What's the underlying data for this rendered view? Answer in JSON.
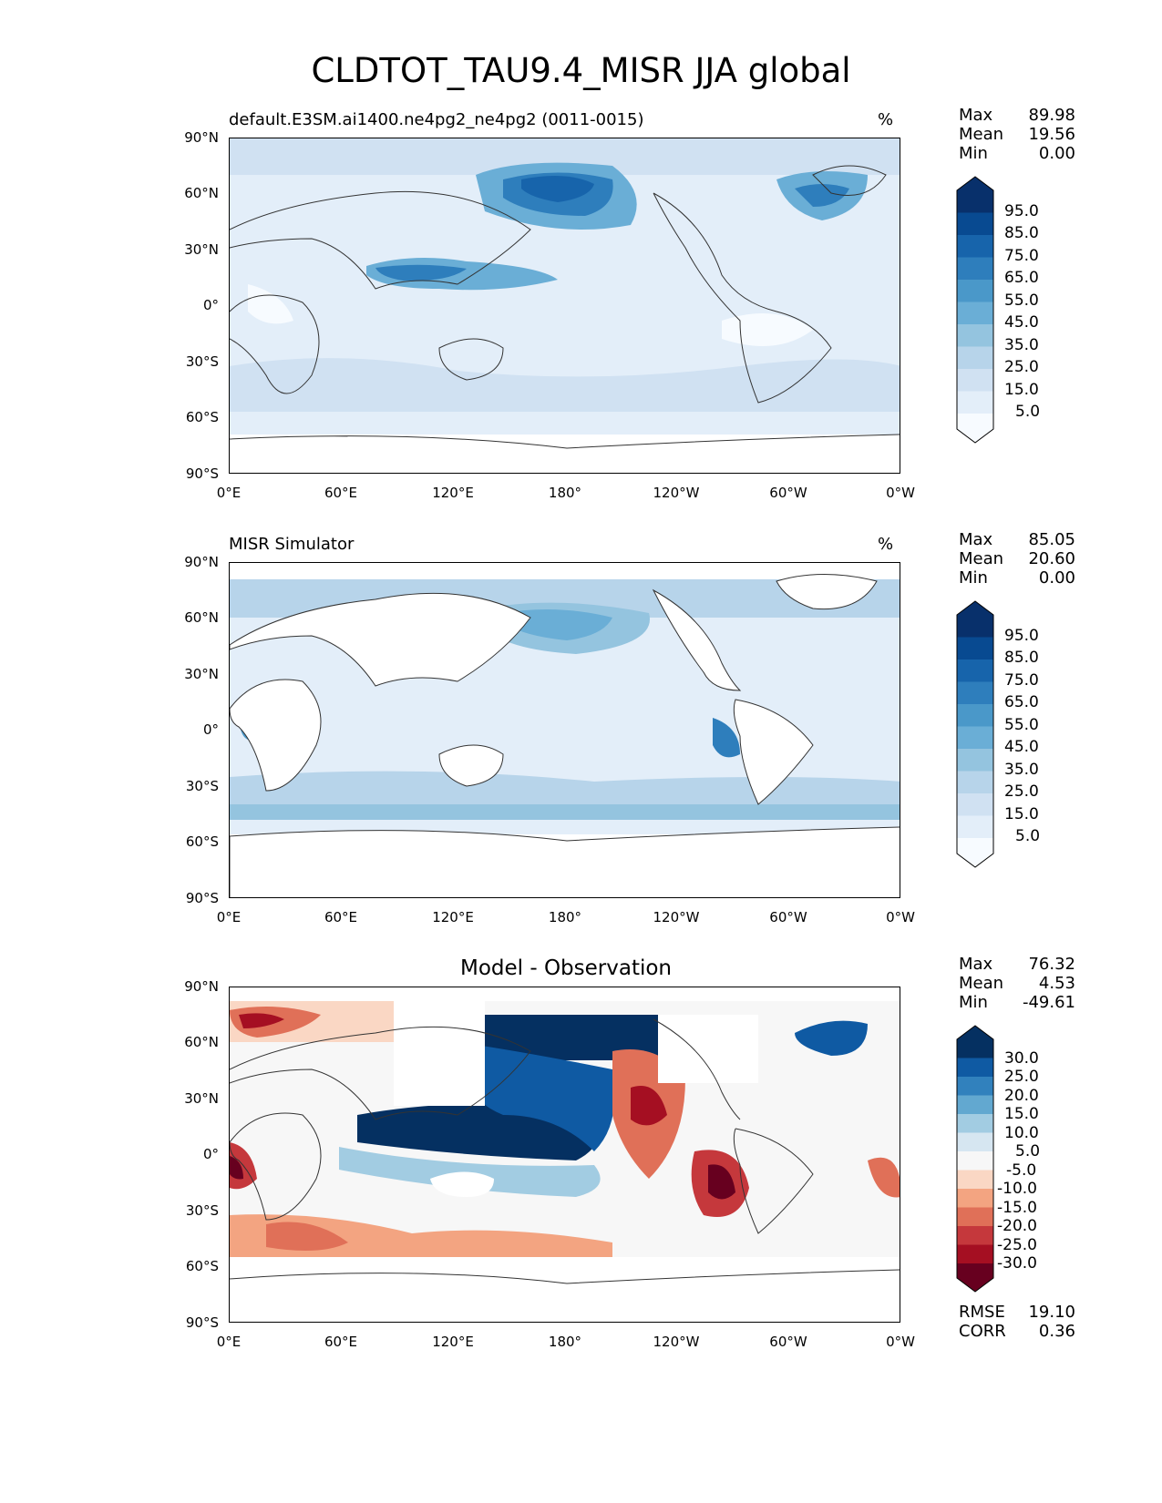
{
  "title": "CLDTOT_TAU9.4_MISR JJA global",
  "axes": {
    "lat_labels": [
      "90°N",
      "60°N",
      "30°N",
      "0°",
      "30°S",
      "60°S",
      "90°S"
    ],
    "lon_labels": [
      "0°E",
      "60°E",
      "120°E",
      "180°",
      "120°W",
      "60°W",
      "0°W"
    ]
  },
  "panels": [
    {
      "title": "default.E3SM.ai1400.ne4pg2_ne4pg2 (0011-0015)",
      "unit": "%",
      "stats": [
        {
          "label": "Max",
          "value": "89.98"
        },
        {
          "label": "Mean",
          "value": "19.56"
        },
        {
          "label": "Min",
          "value": "0.00"
        }
      ],
      "colorbar": [
        "95.0",
        "85.0",
        "75.0",
        "65.0",
        "55.0",
        "45.0",
        "35.0",
        "25.0",
        "15.0",
        "5.0"
      ]
    },
    {
      "title": "MISR Simulator",
      "unit": "%",
      "stats": [
        {
          "label": "Max",
          "value": "85.05"
        },
        {
          "label": "Mean",
          "value": "20.60"
        },
        {
          "label": "Min",
          "value": "0.00"
        }
      ],
      "colorbar": [
        "95.0",
        "85.0",
        "75.0",
        "65.0",
        "55.0",
        "45.0",
        "35.0",
        "25.0",
        "15.0",
        "5.0"
      ]
    },
    {
      "title": "Model - Observation",
      "stats": [
        {
          "label": "Max",
          "value": "76.32"
        },
        {
          "label": "Mean",
          "value": "4.53"
        },
        {
          "label": "Min",
          "value": "-49.61"
        }
      ],
      "colorbar": [
        "30.0",
        "25.0",
        "20.0",
        "15.0",
        "10.0",
        "5.0",
        "-5.0",
        "-10.0",
        "-15.0",
        "-20.0",
        "-25.0",
        "-30.0"
      ],
      "metrics": [
        {
          "label": "RMSE",
          "value": "19.10"
        },
        {
          "label": "CORR",
          "value": "0.36"
        }
      ]
    }
  ],
  "colors": {
    "blues": [
      "#f7fbff",
      "#e3eef9",
      "#d0e1f2",
      "#b7d4ea",
      "#94c4df",
      "#6aaed6",
      "#4a98c9",
      "#2e7ebc",
      "#1764ab",
      "#084a91",
      "#08306b"
    ],
    "diverging": [
      "#67001f",
      "#a50f22",
      "#c5383c",
      "#e07058",
      "#f3a481",
      "#fad7c4",
      "#f7f7f7",
      "#d6e6f1",
      "#a2cce2",
      "#62a8d0",
      "#3181bd",
      "#0f5aa3",
      "#053061"
    ]
  }
}
